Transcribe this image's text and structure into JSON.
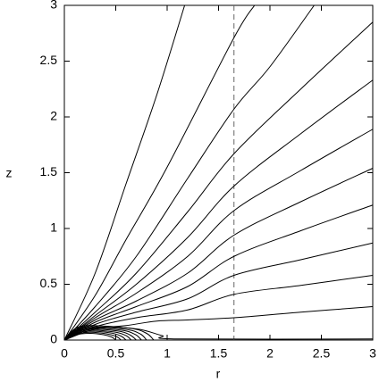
{
  "chart_data": {
    "type": "line",
    "xlabel": "r",
    "ylabel": "z",
    "xlim": [
      0,
      3
    ],
    "ylim": [
      0,
      3
    ],
    "xticks": [
      0,
      0.5,
      1,
      1.5,
      2,
      2.5,
      3
    ],
    "yticks": [
      0,
      0.5,
      1,
      1.5,
      2,
      2.5,
      3
    ],
    "reference_line_x": 1.65,
    "reference_line_color": "#666666",
    "series": [
      {
        "color": "#000000",
        "x": [
          0,
          0.3,
          0.6,
          0.9,
          1.17
        ],
        "values": [
          0,
          0.6,
          1.4,
          2.2,
          3
        ]
      },
      {
        "color": "#000000",
        "x": [
          0,
          0.3,
          0.6,
          1.0,
          1.65,
          1.85
        ],
        "values": [
          0,
          0.4,
          0.9,
          1.55,
          2.71,
          3
        ]
      },
      {
        "color": "#000000",
        "x": [
          0,
          0.3,
          0.7,
          1.2,
          1.65,
          2.0,
          2.43
        ],
        "values": [
          0,
          0.3,
          0.75,
          1.45,
          2.07,
          2.45,
          3
        ]
      },
      {
        "color": "#000000",
        "x": [
          0,
          0.3,
          0.7,
          1.2,
          1.65,
          2.3,
          3
        ],
        "values": [
          0,
          0.25,
          0.6,
          1.15,
          1.67,
          2.25,
          2.85
        ]
      },
      {
        "color": "#000000",
        "x": [
          0,
          0.3,
          0.7,
          1.2,
          1.65,
          2.3,
          3
        ],
        "values": [
          0,
          0.22,
          0.5,
          0.92,
          1.38,
          1.85,
          2.33
        ]
      },
      {
        "color": "#000000",
        "x": [
          0,
          0.3,
          0.7,
          1.2,
          1.65,
          2.3,
          3
        ],
        "values": [
          0,
          0.2,
          0.42,
          0.75,
          1.16,
          1.52,
          1.89
        ]
      },
      {
        "color": "#000000",
        "x": [
          0,
          0.3,
          0.7,
          1.2,
          1.65,
          2.3,
          3
        ],
        "values": [
          0,
          0.18,
          0.35,
          0.6,
          0.94,
          1.24,
          1.54
        ]
      },
      {
        "color": "#000000",
        "x": [
          0,
          0.3,
          0.7,
          1.2,
          1.65,
          2.3,
          3
        ],
        "values": [
          0,
          0.16,
          0.3,
          0.48,
          0.75,
          0.98,
          1.21
        ]
      },
      {
        "color": "#000000",
        "x": [
          0,
          0.3,
          0.7,
          1.2,
          1.65,
          2.3,
          3
        ],
        "values": [
          0,
          0.14,
          0.25,
          0.37,
          0.58,
          0.72,
          0.87
        ]
      },
      {
        "color": "#000000",
        "x": [
          0,
          0.3,
          0.7,
          1.2,
          1.65,
          2.3,
          3
        ],
        "values": [
          0,
          0.12,
          0.2,
          0.27,
          0.41,
          0.49,
          0.58
        ]
      },
      {
        "color": "#000000",
        "x": [
          0,
          0.3,
          0.6,
          0.9,
          1.2,
          1.65,
          2.3,
          3
        ],
        "values": [
          0,
          0.1,
          0.13,
          0.17,
          0.18,
          0.2,
          0.25,
          0.3
        ]
      },
      {
        "color": "#000000",
        "x": [
          0,
          0.3,
          0.7,
          0.95,
          1.1,
          3
        ],
        "values": [
          0,
          0.11,
          0.1,
          0.04,
          0.01,
          0.01
        ]
      },
      {
        "color": "#000000",
        "x": [
          0,
          0.1,
          0.25,
          0.38,
          0.46,
          0.5
        ],
        "values": [
          0,
          0.045,
          0.06,
          0.048,
          0.027,
          0
        ]
      },
      {
        "color": "#000000",
        "x": [
          0,
          0.1,
          0.25,
          0.41,
          0.51,
          0.55
        ],
        "values": [
          0,
          0.05,
          0.07,
          0.056,
          0.03,
          0
        ]
      },
      {
        "color": "#000000",
        "x": [
          0,
          0.1,
          0.25,
          0.45,
          0.55,
          0.6
        ],
        "values": [
          0,
          0.06,
          0.08,
          0.064,
          0.036,
          0
        ]
      },
      {
        "color": "#000000",
        "x": [
          0,
          0.1,
          0.25,
          0.49,
          0.6,
          0.65
        ],
        "values": [
          0,
          0.07,
          0.09,
          0.072,
          0.04,
          0
        ]
      },
      {
        "color": "#000000",
        "x": [
          0,
          0.1,
          0.25,
          0.53,
          0.64,
          0.7
        ],
        "values": [
          0,
          0.075,
          0.1,
          0.08,
          0.045,
          0
        ]
      },
      {
        "color": "#000000",
        "x": [
          0,
          0.1,
          0.25,
          0.56,
          0.69,
          0.75
        ],
        "values": [
          0,
          0.08,
          0.11,
          0.088,
          0.05,
          0
        ]
      },
      {
        "color": "#000000",
        "x": [
          0,
          0.1,
          0.25,
          0.6,
          0.74,
          0.8
        ],
        "values": [
          0,
          0.09,
          0.12,
          0.096,
          0.054,
          0
        ]
      },
      {
        "color": "#000000",
        "x": [
          0,
          0.1,
          0.25,
          0.65,
          0.8,
          0.87
        ],
        "values": [
          0,
          0.1,
          0.13,
          0.104,
          0.06,
          0
        ]
      }
    ]
  }
}
